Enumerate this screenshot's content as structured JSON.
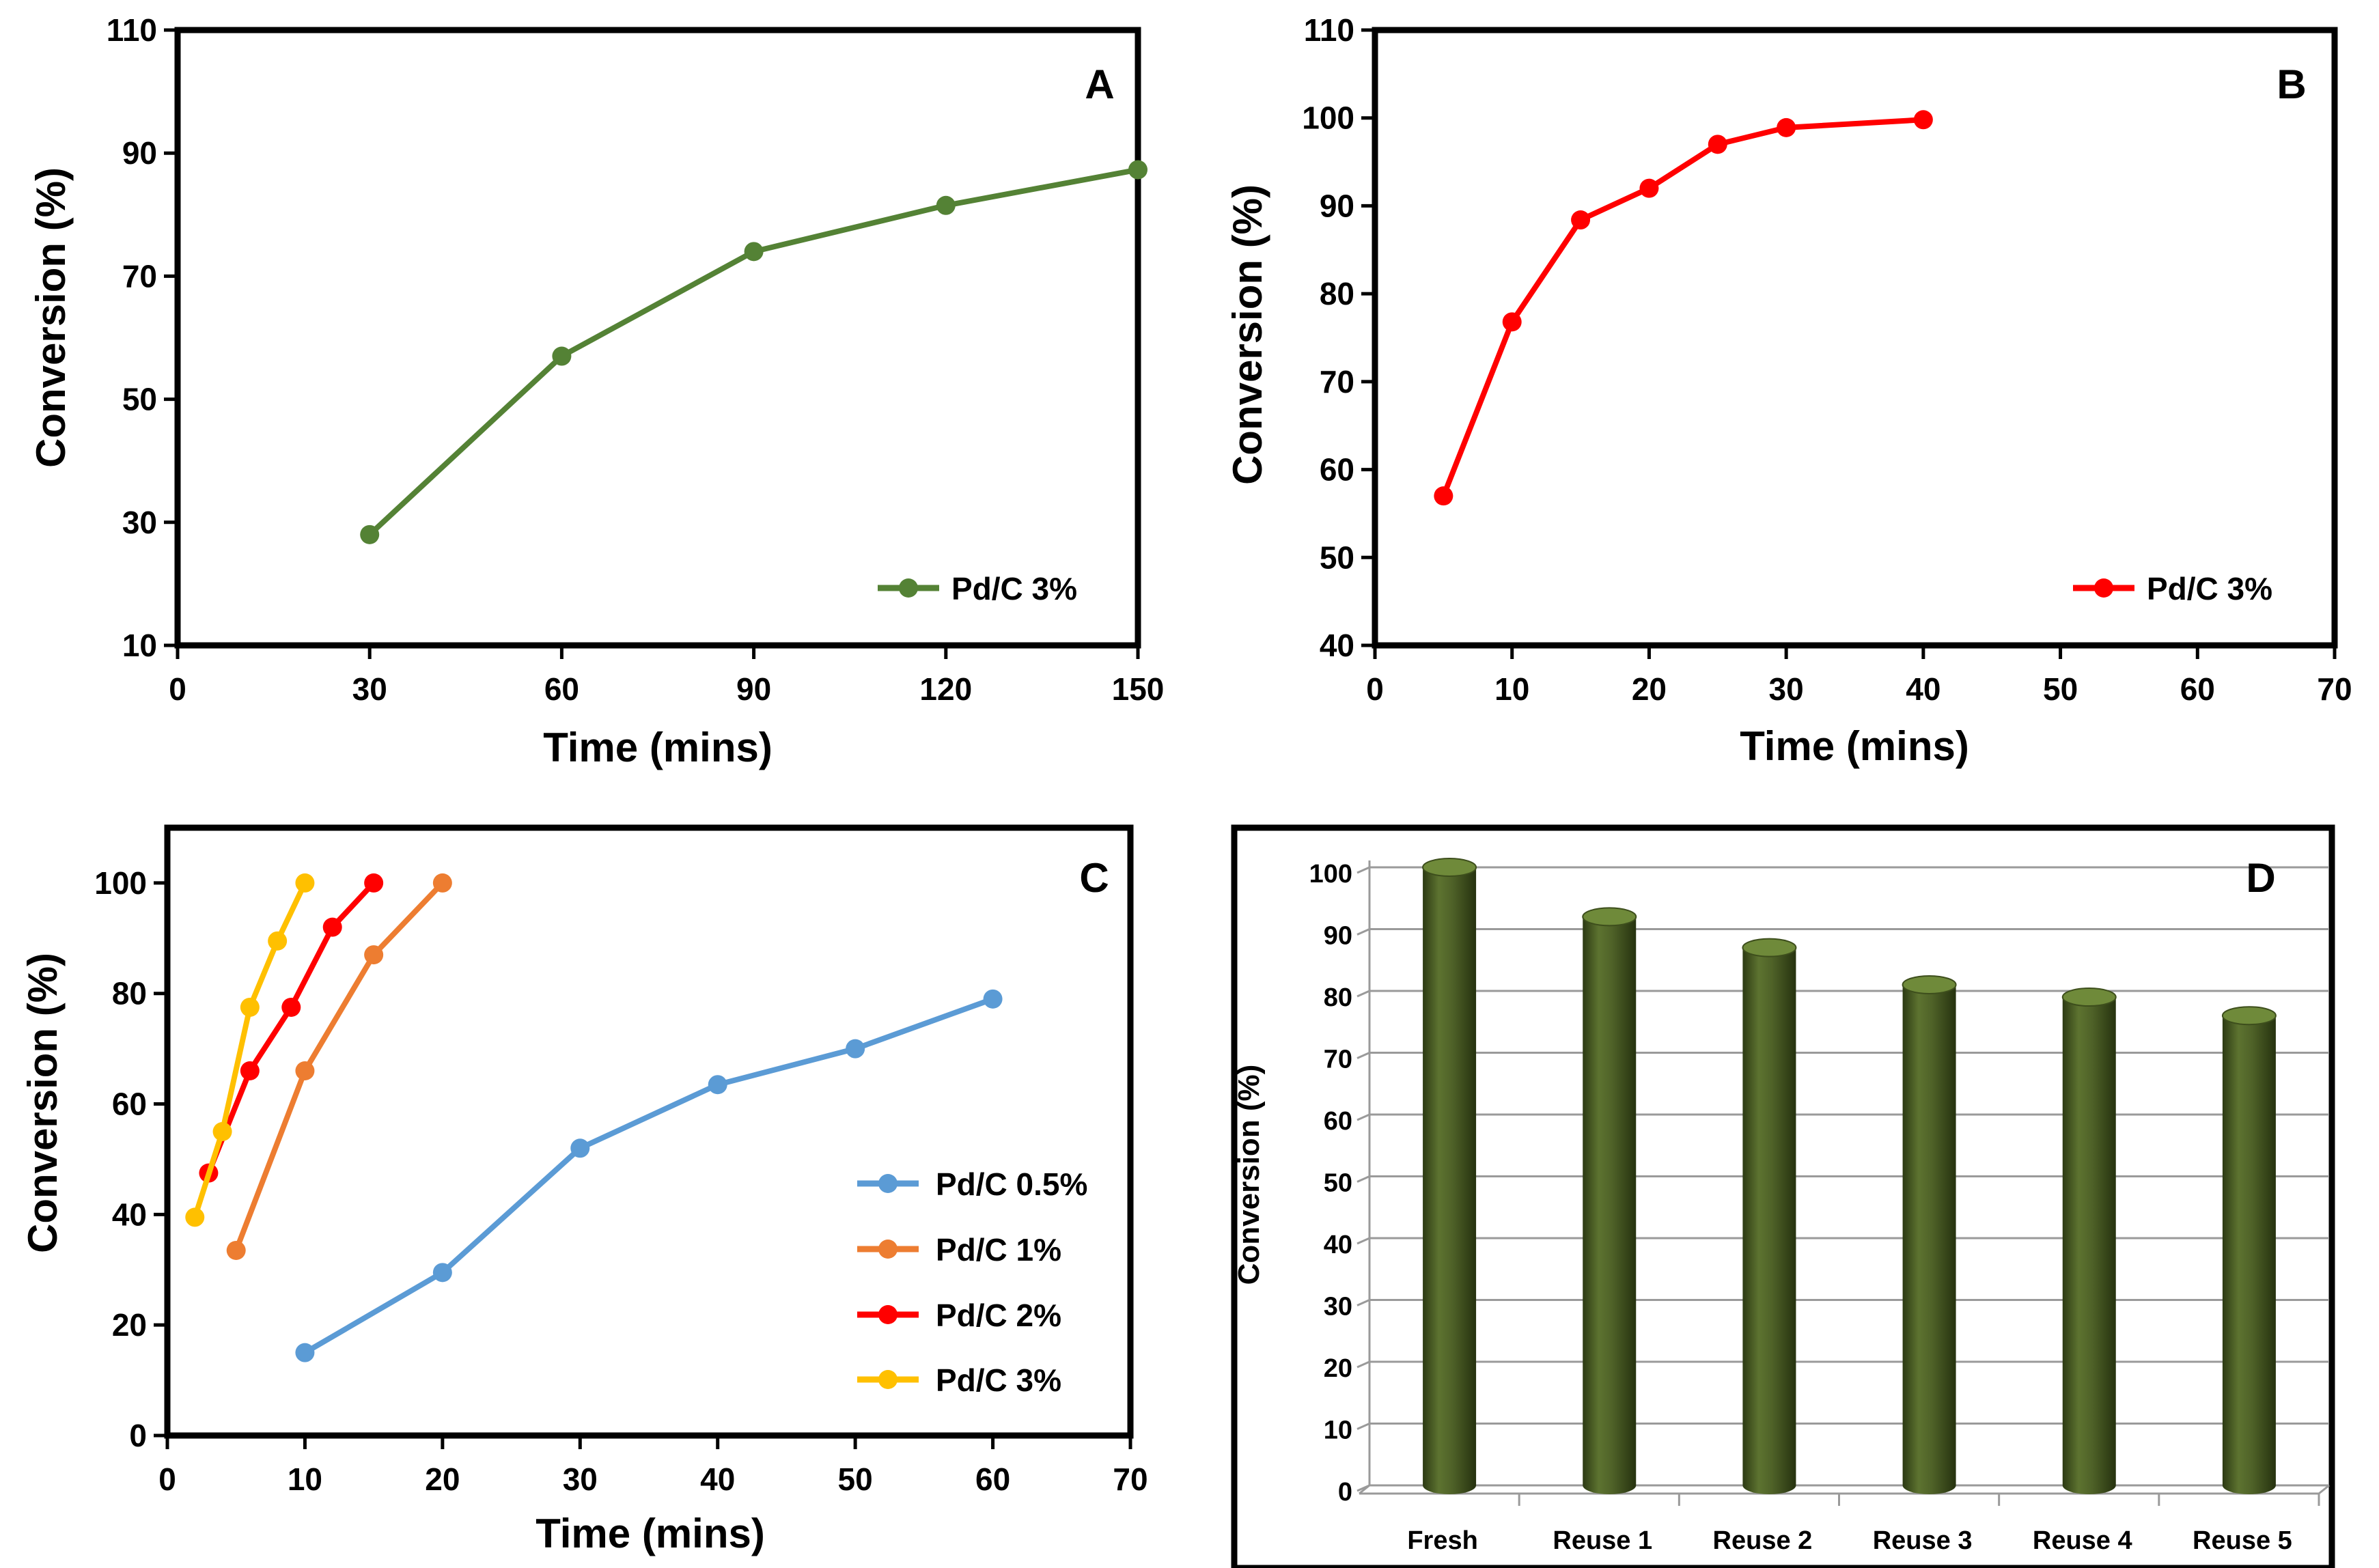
{
  "chart_data": [
    {
      "panel": "A",
      "type": "line",
      "title": "A",
      "xlabel": "Time (mins)",
      "ylabel": "Conversion (%)",
      "xlim": [
        0,
        150
      ],
      "ylim": [
        10,
        110
      ],
      "xticks": [
        0,
        30,
        60,
        90,
        120,
        150
      ],
      "yticks": [
        10,
        30,
        50,
        70,
        90,
        110
      ],
      "xtick_labels": [
        "0",
        "30",
        "60",
        "90",
        "120",
        "150"
      ],
      "ytick_labels": [
        "10",
        "30",
        "50",
        "70",
        "90",
        "110"
      ],
      "grid": false,
      "legend_position": "bottom-right",
      "series": [
        {
          "name": "Pd/C 3%",
          "color": "#548235",
          "x": [
            30,
            60,
            90,
            120,
            150
          ],
          "y": [
            28,
            57,
            74,
            81.5,
            87.3
          ]
        }
      ]
    },
    {
      "panel": "B",
      "type": "line",
      "title": "B",
      "xlabel": "Time (mins)",
      "ylabel": "Conversion (%)",
      "xlim": [
        0,
        70
      ],
      "ylim": [
        40,
        110
      ],
      "xticks": [
        0,
        10,
        20,
        30,
        40,
        50,
        60,
        70
      ],
      "yticks": [
        40,
        50,
        60,
        70,
        80,
        90,
        100,
        110
      ],
      "xtick_labels": [
        "0",
        "10",
        "20",
        "30",
        "40",
        "50",
        "60",
        "70"
      ],
      "ytick_labels": [
        "40",
        "50",
        "60",
        "70",
        "80",
        "90",
        "100",
        "110"
      ],
      "grid": false,
      "legend_position": "bottom-right",
      "series": [
        {
          "name": "Pd/C 3%",
          "color": "#ff0000",
          "x": [
            5,
            10,
            15,
            20,
            25,
            30,
            40
          ],
          "y": [
            57,
            76.8,
            88.4,
            92,
            97,
            98.9,
            99.8
          ]
        }
      ]
    },
    {
      "panel": "C",
      "type": "line",
      "title": "C",
      "xlabel": "Time (mins)",
      "ylabel": "Conversion (%)",
      "xlim": [
        0,
        70
      ],
      "ylim": [
        0,
        110
      ],
      "xticks": [
        0,
        10,
        20,
        30,
        40,
        50,
        60,
        70
      ],
      "yticks": [
        0,
        20,
        40,
        60,
        80,
        100
      ],
      "xtick_labels": [
        "0",
        "10",
        "20",
        "30",
        "40",
        "50",
        "60",
        "70"
      ],
      "ytick_labels": [
        "0",
        "20",
        "40",
        "60",
        "80",
        "100"
      ],
      "grid": false,
      "legend_position": "right",
      "series": [
        {
          "name": "Pd/C 0.5%",
          "color": "#5b9bd5",
          "x": [
            10,
            20,
            30,
            40,
            50,
            60
          ],
          "y": [
            15,
            29.5,
            52,
            63.5,
            70,
            79
          ]
        },
        {
          "name": "Pd/C 1%",
          "color": "#ed7d31",
          "x": [
            5,
            10,
            15,
            20
          ],
          "y": [
            33.5,
            66,
            87,
            100
          ]
        },
        {
          "name": "Pd/C 2%",
          "color": "#ff0000",
          "x": [
            3,
            6,
            9,
            12,
            15
          ],
          "y": [
            47.5,
            66,
            77.5,
            92,
            100
          ]
        },
        {
          "name": "Pd/C 3%",
          "color": "#ffc000",
          "x": [
            2,
            4,
            6,
            8,
            10
          ],
          "y": [
            39.5,
            55,
            77.5,
            89.5,
            100
          ]
        }
      ]
    },
    {
      "panel": "D",
      "type": "bar",
      "title": "D",
      "xlabel": "",
      "ylabel": "Conversion (%)",
      "ylim": [
        0,
        100
      ],
      "yticks": [
        0,
        10,
        20,
        30,
        40,
        50,
        60,
        70,
        80,
        90,
        100
      ],
      "ytick_labels": [
        "0",
        "10",
        "20",
        "30",
        "40",
        "50",
        "60",
        "70",
        "80",
        "90",
        "100"
      ],
      "grid": true,
      "categories": [
        "Fresh",
        "Reuse 1",
        "Reuse 2",
        "Reuse 3",
        "Reuse 4",
        "Reuse 5"
      ],
      "values": [
        100,
        92,
        87,
        81,
        79,
        76
      ],
      "bar_color": "#4f6228",
      "bar_shape": "cylinder"
    }
  ]
}
